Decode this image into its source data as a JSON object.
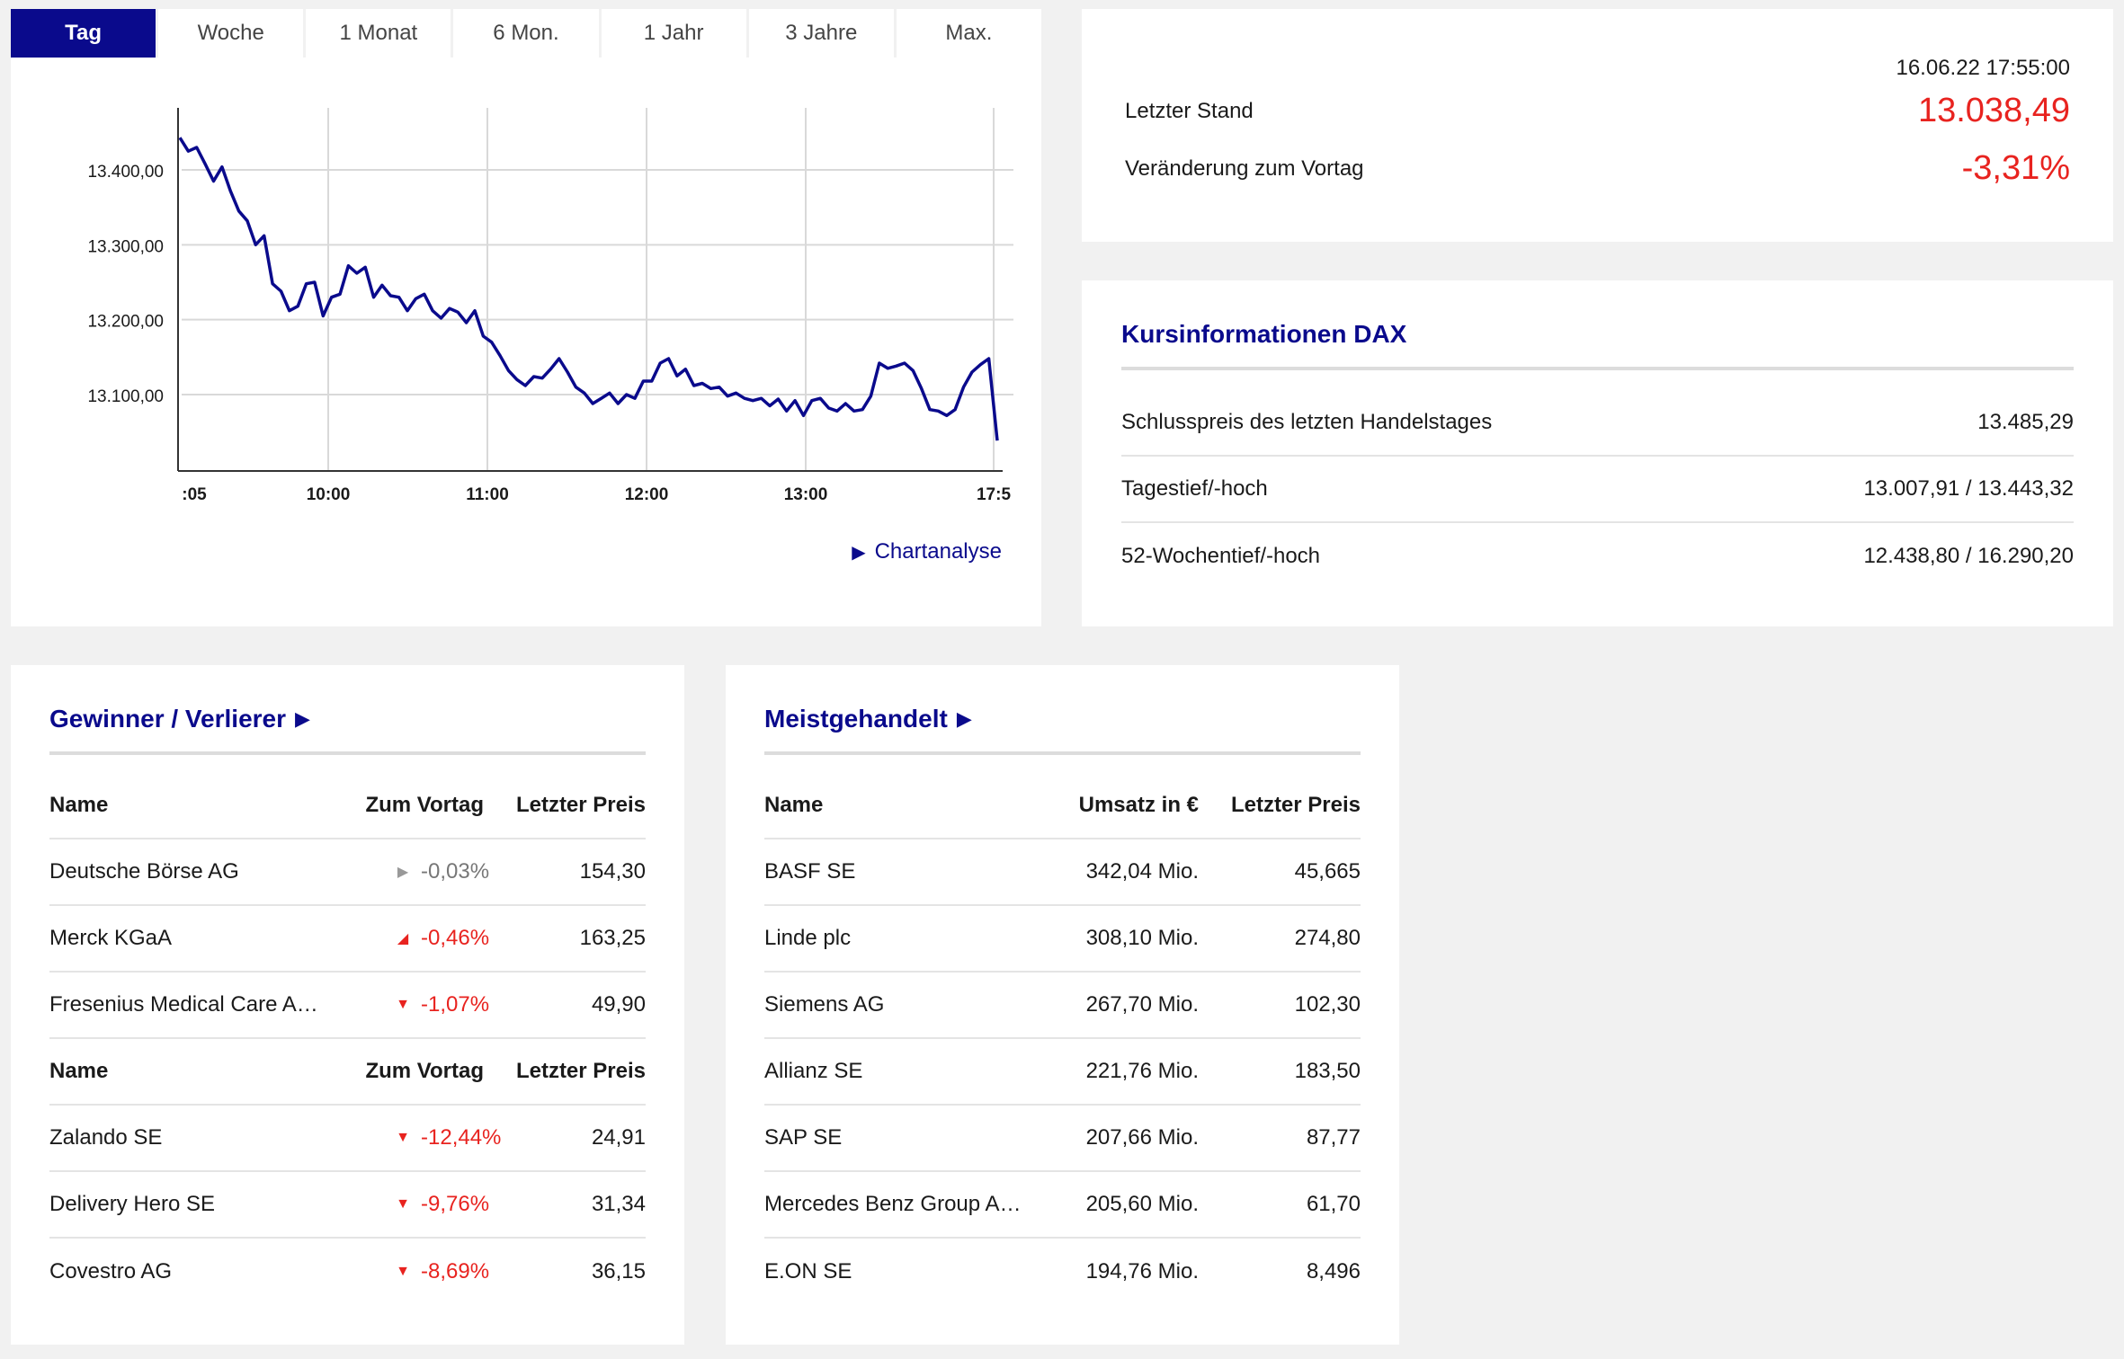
{
  "tabs": [
    "Tag",
    "Woche",
    "1 Monat",
    "6 Mon.",
    "1 Jahr",
    "3 Jahre",
    "Max."
  ],
  "active_tab": 0,
  "chart_data": {
    "type": "line",
    "x_ticks": [
      ":05",
      "10:00",
      "11:00",
      "12:00",
      "13:00",
      "17:5"
    ],
    "y_ticks": [
      "13.400,00",
      "13.300,00",
      "13.200,00",
      "13.100,00"
    ],
    "ylim": [
      13007.91,
      13443.32
    ],
    "line_color": "#0a0a8c",
    "values": [
      13443,
      13425,
      13430,
      13408,
      13385,
      13404,
      13372,
      13345,
      13332,
      13300,
      13312,
      13248,
      13238,
      13212,
      13218,
      13248,
      13250,
      13205,
      13230,
      13234,
      13272,
      13262,
      13270,
      13230,
      13246,
      13232,
      13230,
      13212,
      13228,
      13234,
      13212,
      13202,
      13215,
      13210,
      13196,
      13212,
      13178,
      13170,
      13152,
      13132,
      13120,
      13112,
      13124,
      13122,
      13134,
      13148,
      13130,
      13110,
      13102,
      13088,
      13095,
      13102,
      13088,
      13100,
      13095,
      13118,
      13118,
      13142,
      13148,
      13125,
      13134,
      13112,
      13115,
      13108,
      13110,
      13098,
      13102,
      13095,
      13092,
      13095,
      13085,
      13094,
      13078,
      13092,
      13072,
      13092,
      13095,
      13082,
      13078,
      13088,
      13078,
      13080,
      13098,
      13142,
      13135,
      13138,
      13142,
      13132,
      13108,
      13080,
      13078,
      13072,
      13080,
      13110,
      13130,
      13140,
      13148,
      13038.49
    ]
  },
  "chart_link": "Chartanalyse",
  "quote": {
    "timestamp": "16.06.22 17:55:00",
    "last_label": "Letzter Stand",
    "last_value": "13.038,49",
    "change_label": "Veränderung zum Vortag",
    "change_value": "-3,31%",
    "accent": "#e8231f"
  },
  "info": {
    "title": "Kursinformationen DAX",
    "rows": [
      {
        "label": "Schlusspreis des letzten Handelstages",
        "value": "13.485,29"
      },
      {
        "label": "Tagestief/-hoch",
        "value": "13.007,91 / 13.443,32"
      },
      {
        "label": "52-Wochentief/-hoch",
        "value": "12.438,80 / 16.290,20"
      }
    ]
  },
  "gainers_losers": {
    "title": "Gewinner / Verlierer",
    "headers": {
      "name": "Name",
      "change": "Zum Vortag",
      "price": "Letzter Preis"
    },
    "gainers": [
      {
        "name": "Deutsche Börse AG",
        "change": "-0,03%",
        "price": "154,30",
        "trend": "flat"
      },
      {
        "name": "Merck KGaA",
        "change": "-0,46%",
        "price": "163,25",
        "trend": "slight-down"
      },
      {
        "name": "Fresenius Medical Care A…",
        "change": "-1,07%",
        "price": "49,90",
        "trend": "down"
      }
    ],
    "losers": [
      {
        "name": "Zalando SE",
        "change": "-12,44%",
        "price": "24,91",
        "trend": "down"
      },
      {
        "name": "Delivery Hero SE",
        "change": "-9,76%",
        "price": "31,34",
        "trend": "down"
      },
      {
        "name": "Covestro AG",
        "change": "-8,69%",
        "price": "36,15",
        "trend": "down"
      }
    ]
  },
  "most_traded": {
    "title": "Meistgehandelt",
    "headers": {
      "name": "Name",
      "volume": "Umsatz in €",
      "price": "Letzter Preis"
    },
    "rows": [
      {
        "name": "BASF SE",
        "volume": "342,04 Mio.",
        "price": "45,665"
      },
      {
        "name": "Linde plc",
        "volume": "308,10 Mio.",
        "price": "274,80"
      },
      {
        "name": "Siemens AG",
        "volume": "267,70 Mio.",
        "price": "102,30"
      },
      {
        "name": "Allianz SE",
        "volume": "221,76 Mio.",
        "price": "183,50"
      },
      {
        "name": "SAP SE",
        "volume": "207,66 Mio.",
        "price": "87,77"
      },
      {
        "name": "Mercedes Benz Group AG…",
        "volume": "205,60 Mio.",
        "price": "61,70"
      },
      {
        "name": "E.ON SE",
        "volume": "194,76 Mio.",
        "price": "8,496"
      }
    ]
  }
}
